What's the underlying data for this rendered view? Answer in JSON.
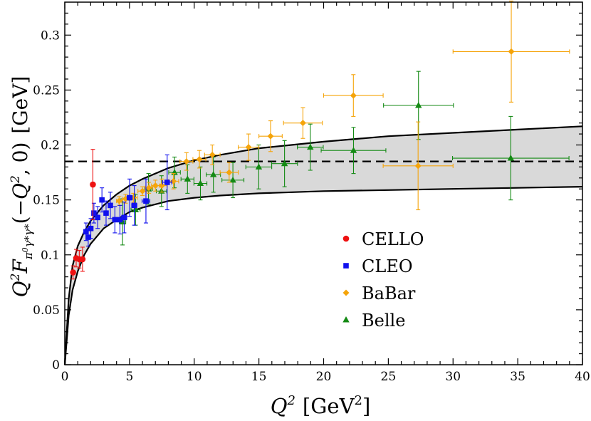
{
  "chart_data": {
    "type": "scatter",
    "xlabel": "Q² [GeV²]",
    "ylabel": "Q² F_{π⁰γ*γ*}(−Q², 0) [GeV]",
    "xlim": [
      0,
      40
    ],
    "ylim": [
      0,
      0.33
    ],
    "xticks": [
      0,
      5,
      10,
      15,
      20,
      25,
      30,
      35,
      40
    ],
    "yticks": [
      0,
      0.05,
      0.1,
      0.15,
      0.2,
      0.25,
      0.3
    ],
    "xtick_labels": [
      "0",
      "5",
      "10",
      "15",
      "20",
      "25",
      "30",
      "35",
      "40"
    ],
    "ytick_labels": [
      "0",
      "0.05",
      "0.1",
      "0.15",
      "0.2",
      "0.25",
      "0.3"
    ],
    "reference_line": {
      "y": 0.185,
      "style": "dashed"
    },
    "band": {
      "upper": [
        [
          0.3,
          0.06
        ],
        [
          0.6,
          0.09
        ],
        [
          1,
          0.108
        ],
        [
          1.5,
          0.121
        ],
        [
          2,
          0.131
        ],
        [
          3,
          0.145
        ],
        [
          4,
          0.155
        ],
        [
          5,
          0.163
        ],
        [
          6,
          0.169
        ],
        [
          8,
          0.179
        ],
        [
          10,
          0.186
        ],
        [
          12,
          0.191
        ],
        [
          15,
          0.197
        ],
        [
          20,
          0.203
        ],
        [
          25,
          0.208
        ],
        [
          30,
          0.211
        ],
        [
          35,
          0.214
        ],
        [
          40,
          0.217
        ]
      ],
      "lower": [
        [
          0,
          0
        ],
        [
          0.3,
          0.045
        ],
        [
          0.6,
          0.068
        ],
        [
          1,
          0.085
        ],
        [
          1.5,
          0.1
        ],
        [
          2,
          0.11
        ],
        [
          3,
          0.124
        ],
        [
          4,
          0.132
        ],
        [
          5,
          0.139
        ],
        [
          6,
          0.143
        ],
        [
          8,
          0.149
        ],
        [
          10,
          0.152
        ],
        [
          12,
          0.154
        ],
        [
          15,
          0.156
        ],
        [
          20,
          0.158
        ],
        [
          25,
          0.159
        ],
        [
          30,
          0.16
        ],
        [
          35,
          0.161
        ],
        [
          40,
          0.162
        ]
      ]
    },
    "series": [
      {
        "name": "CELLO",
        "color": "#ee1111",
        "marker": "circle",
        "points": [
          {
            "x": 0.64,
            "y": 0.084,
            "xerr": 0.1,
            "yerr": 0.006
          },
          {
            "x": 0.88,
            "y": 0.097,
            "xerr": 0.1,
            "yerr": 0.008
          },
          {
            "x": 1.12,
            "y": 0.096,
            "xerr": 0.12,
            "yerr": 0.008
          },
          {
            "x": 1.37,
            "y": 0.096,
            "xerr": 0.12,
            "yerr": 0.011
          },
          {
            "x": 2.17,
            "y": 0.164,
            "xerr": 0.15,
            "yerr": 0.032
          }
        ]
      },
      {
        "name": "CLEO",
        "color": "#1111ee",
        "marker": "square",
        "points": [
          {
            "x": 1.64,
            "y": 0.121,
            "xerr": 0.1,
            "yerr": 0.008
          },
          {
            "x": 1.81,
            "y": 0.116,
            "xerr": 0.1,
            "yerr": 0.008
          },
          {
            "x": 2.01,
            "y": 0.124,
            "xerr": 0.1,
            "yerr": 0.009
          },
          {
            "x": 2.25,
            "y": 0.138,
            "xerr": 0.12,
            "yerr": 0.009
          },
          {
            "x": 2.54,
            "y": 0.134,
            "xerr": 0.13,
            "yerr": 0.01
          },
          {
            "x": 2.87,
            "y": 0.15,
            "xerr": 0.15,
            "yerr": 0.011
          },
          {
            "x": 3.19,
            "y": 0.138,
            "xerr": 0.15,
            "yerr": 0.011
          },
          {
            "x": 3.52,
            "y": 0.145,
            "xerr": 0.16,
            "yerr": 0.012
          },
          {
            "x": 3.87,
            "y": 0.132,
            "xerr": 0.17,
            "yerr": 0.012
          },
          {
            "x": 4.26,
            "y": 0.132,
            "xerr": 0.18,
            "yerr": 0.013
          },
          {
            "x": 4.59,
            "y": 0.134,
            "xerr": 0.2,
            "yerr": 0.014
          },
          {
            "x": 5.01,
            "y": 0.152,
            "xerr": 0.2,
            "yerr": 0.017
          },
          {
            "x": 5.37,
            "y": 0.145,
            "xerr": 0.2,
            "yerr": 0.018
          },
          {
            "x": 6.27,
            "y": 0.149,
            "xerr": 0.3,
            "yerr": 0.02
          },
          {
            "x": 7.91,
            "y": 0.166,
            "xerr": 0.35,
            "yerr": 0.025
          }
        ]
      },
      {
        "name": "BaBar",
        "color": "#f5a40a",
        "marker": "diamond",
        "points": [
          {
            "x": 4.2,
            "y": 0.149,
            "xerr": 0.2,
            "yerr": 0.004
          },
          {
            "x": 4.7,
            "y": 0.151,
            "xerr": 0.25,
            "yerr": 0.004
          },
          {
            "x": 5.3,
            "y": 0.152,
            "xerr": 0.3,
            "yerr": 0.004
          },
          {
            "x": 6.0,
            "y": 0.158,
            "xerr": 0.35,
            "yerr": 0.004
          },
          {
            "x": 6.5,
            "y": 0.161,
            "xerr": 0.3,
            "yerr": 0.005
          },
          {
            "x": 7.0,
            "y": 0.163,
            "xerr": 0.3,
            "yerr": 0.005
          },
          {
            "x": 7.5,
            "y": 0.163,
            "xerr": 0.4,
            "yerr": 0.006
          },
          {
            "x": 8.4,
            "y": 0.167,
            "xerr": 0.4,
            "yerr": 0.007
          },
          {
            "x": 9.4,
            "y": 0.185,
            "xerr": 0.5,
            "yerr": 0.008
          },
          {
            "x": 10.4,
            "y": 0.187,
            "xerr": 0.5,
            "yerr": 0.008
          },
          {
            "x": 11.4,
            "y": 0.191,
            "xerr": 0.6,
            "yerr": 0.009
          },
          {
            "x": 12.7,
            "y": 0.175,
            "xerr": 0.7,
            "yerr": 0.009
          },
          {
            "x": 14.2,
            "y": 0.198,
            "xerr": 0.8,
            "yerr": 0.012
          },
          {
            "x": 15.9,
            "y": 0.208,
            "xerr": 0.9,
            "yerr": 0.014
          },
          {
            "x": 18.4,
            "y": 0.22,
            "xerr": 1.5,
            "yerr": 0.014
          },
          {
            "x": 22.3,
            "y": 0.245,
            "xerr": 2.3,
            "yerr": 0.019
          },
          {
            "x": 27.3,
            "y": 0.181,
            "xerr": 2.7,
            "yerr": 0.04
          },
          {
            "x": 34.5,
            "y": 0.285,
            "xerr": 4.5,
            "yerr": 0.046
          }
        ]
      },
      {
        "name": "Belle",
        "color": "#148a14",
        "marker": "triangle",
        "points": [
          {
            "x": 4.46,
            "y": 0.13,
            "xerr": 0.25,
            "yerr": 0.021
          },
          {
            "x": 5.47,
            "y": 0.141,
            "xerr": 0.35,
            "yerr": 0.014
          },
          {
            "x": 6.47,
            "y": 0.16,
            "xerr": 0.3,
            "yerr": 0.014
          },
          {
            "x": 7.47,
            "y": 0.158,
            "xerr": 0.4,
            "yerr": 0.014
          },
          {
            "x": 8.48,
            "y": 0.175,
            "xerr": 0.45,
            "yerr": 0.014
          },
          {
            "x": 9.48,
            "y": 0.169,
            "xerr": 0.5,
            "yerr": 0.013
          },
          {
            "x": 10.48,
            "y": 0.165,
            "xerr": 0.5,
            "yerr": 0.015
          },
          {
            "x": 11.48,
            "y": 0.173,
            "xerr": 0.55,
            "yerr": 0.016
          },
          {
            "x": 12.99,
            "y": 0.168,
            "xerr": 0.85,
            "yerr": 0.016
          },
          {
            "x": 14.99,
            "y": 0.18,
            "xerr": 1.0,
            "yerr": 0.02
          },
          {
            "x": 16.98,
            "y": 0.183,
            "xerr": 1.0,
            "yerr": 0.021
          },
          {
            "x": 18.97,
            "y": 0.198,
            "xerr": 1.0,
            "yerr": 0.021
          },
          {
            "x": 22.31,
            "y": 0.195,
            "xerr": 2.5,
            "yerr": 0.021
          },
          {
            "x": 27.33,
            "y": 0.236,
            "xerr": 2.7,
            "yerr": 0.031
          },
          {
            "x": 34.46,
            "y": 0.188,
            "xerr": 4.5,
            "yerr": 0.038
          }
        ]
      }
    ],
    "legend": {
      "position": "center-bottom",
      "entries": [
        "CELLO",
        "CLEO",
        "BaBar",
        "Belle"
      ]
    }
  }
}
